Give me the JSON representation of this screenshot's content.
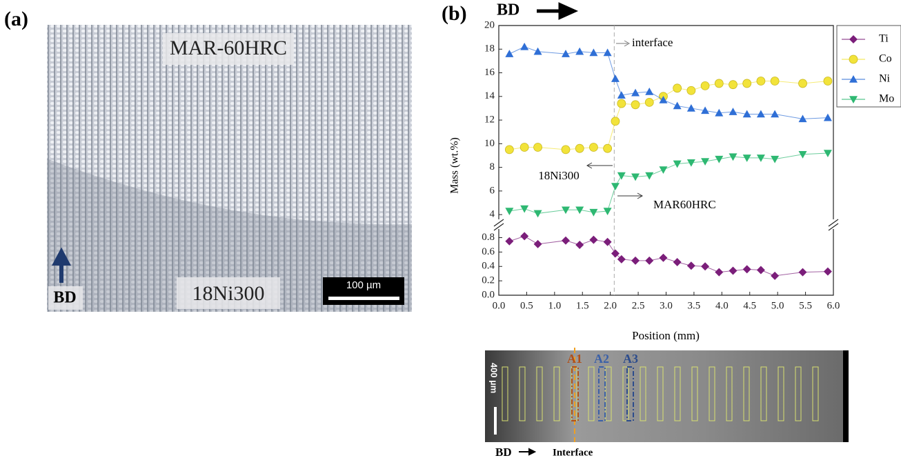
{
  "panel_a": {
    "label": "(a)",
    "top_label": "MAR-60HRC",
    "bottom_label": "18Ni300",
    "direction": "BD",
    "scale_bar": "100 µm"
  },
  "panel_b": {
    "label": "(b)",
    "direction": "BD"
  },
  "chart_data": {
    "type": "line",
    "xlabel": "Position (mm)",
    "ylabel": "Mass (wt.%)",
    "x": [
      0.19,
      0.46,
      0.7,
      1.2,
      1.45,
      1.7,
      1.95,
      2.09,
      2.2,
      2.45,
      2.7,
      2.95,
      3.2,
      3.45,
      3.7,
      3.95,
      4.2,
      4.45,
      4.7,
      4.95,
      5.45,
      5.9
    ],
    "series": [
      {
        "name": "Ti",
        "color": "#7b1e7a",
        "marker": "diamond",
        "axis": "y2",
        "values": [
          0.75,
          0.82,
          0.71,
          0.76,
          0.7,
          0.77,
          0.74,
          0.58,
          0.5,
          0.48,
          0.48,
          0.52,
          0.46,
          0.41,
          0.4,
          0.32,
          0.34,
          0.36,
          0.35,
          0.27,
          0.32,
          0.33
        ]
      },
      {
        "name": "Co",
        "color": "#f2e33a",
        "marker": "circle",
        "values": [
          9.5,
          9.7,
          9.7,
          9.5,
          9.6,
          9.7,
          9.6,
          11.9,
          13.4,
          13.3,
          13.5,
          14.0,
          14.7,
          14.5,
          14.9,
          15.1,
          15.0,
          15.1,
          15.3,
          15.3,
          15.1,
          15.3
        ]
      },
      {
        "name": "Ni",
        "color": "#2f6fd6",
        "marker": "triangle-up",
        "values": [
          17.6,
          18.2,
          17.8,
          17.6,
          17.8,
          17.7,
          17.7,
          15.5,
          14.1,
          14.3,
          14.4,
          13.7,
          13.2,
          13.0,
          12.8,
          12.6,
          12.7,
          12.5,
          12.5,
          12.5,
          12.1,
          12.2
        ]
      },
      {
        "name": "Mo",
        "color": "#2eb872",
        "marker": "triangle-down",
        "values": [
          4.3,
          4.5,
          4.1,
          4.4,
          4.4,
          4.2,
          4.3,
          6.4,
          7.3,
          7.2,
          7.3,
          7.8,
          8.3,
          8.4,
          8.5,
          8.7,
          8.9,
          8.8,
          8.8,
          8.7,
          9.1,
          9.2
        ]
      }
    ],
    "xlim": [
      0,
      6
    ],
    "xticks": [
      {
        "value": 0,
        "label": "0.0"
      },
      0.5,
      {
        "value": 1,
        "label": "1.0"
      },
      1.5,
      {
        "value": 2,
        "label": "2.0"
      },
      2.5,
      {
        "value": 3,
        "label": "3.0"
      },
      3.5,
      {
        "value": 4,
        "label": "4.0"
      },
      4.5,
      {
        "value": 5,
        "label": "5.0"
      },
      5.5,
      {
        "value": 6,
        "label": "6.0"
      }
    ],
    "ylim": [
      3.6,
      20
    ],
    "yticks": [
      4,
      6,
      8,
      10,
      12,
      14,
      16,
      18,
      20
    ],
    "y2lim": [
      0,
      0.92
    ],
    "y2ticks": [
      {
        "value": 0,
        "label": "0.0"
      },
      0.2,
      0.4,
      0.6,
      0.8
    ],
    "interface_x": 2.07,
    "annotations": [
      "interface",
      "18Ni300",
      "MAR60HRC"
    ],
    "legend": "right"
  },
  "strip": {
    "labels": [
      "A1",
      "A2",
      "A3"
    ],
    "scale_bar": "400 µm",
    "direction": "BD",
    "interface": "Interface"
  }
}
